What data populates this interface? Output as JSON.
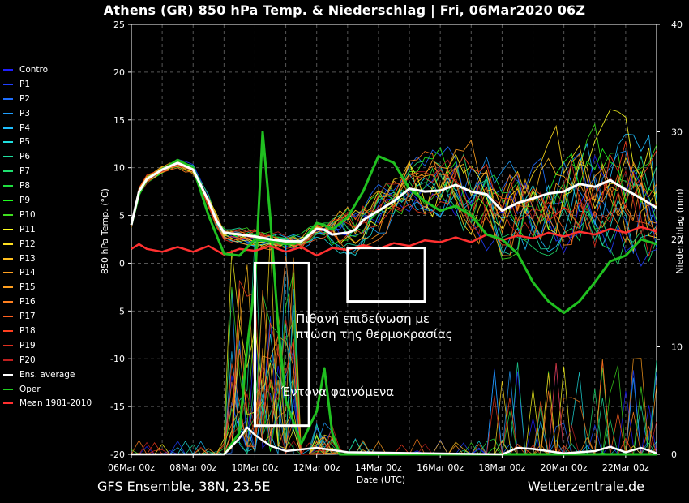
{
  "title": "Athens  (GR)  850 hPa Temp. & Niederschlag | Fri, 06Mar2020 06Z",
  "footer_left": "GFS Ensemble, 38N, 23.5E",
  "footer_right": "Wetterzentrale.de",
  "annotations": {
    "cooling_text_line1": "Πιθανή επιδείνωση με",
    "cooling_text_line2": "πτώση της θερμοκρασίας",
    "intense_text": "Έντονα φαινόμενα"
  },
  "legend": [
    {
      "label": "Control",
      "color": "#2020ff"
    },
    {
      "label": "P1",
      "color": "#1f3fff"
    },
    {
      "label": "P2",
      "color": "#1f6fff"
    },
    {
      "label": "P3",
      "color": "#1f9fff"
    },
    {
      "label": "P4",
      "color": "#1fbfff"
    },
    {
      "label": "P5",
      "color": "#1fdfdf"
    },
    {
      "label": "P6",
      "color": "#1fdf9f"
    },
    {
      "label": "P7",
      "color": "#1fdf6f"
    },
    {
      "label": "P8",
      "color": "#1fdf3f"
    },
    {
      "label": "P9",
      "color": "#20ff20"
    },
    {
      "label": "P10",
      "color": "#3fdf1f"
    },
    {
      "label": "P11",
      "color": "#ffff20"
    },
    {
      "label": "P12",
      "color": "#ffdf20"
    },
    {
      "label": "P13",
      "color": "#ffbf20"
    },
    {
      "label": "P14",
      "color": "#ffa020"
    },
    {
      "label": "P15",
      "color": "#ff9f1f"
    },
    {
      "label": "P16",
      "color": "#ff801f"
    },
    {
      "label": "P17",
      "color": "#ff601f"
    },
    {
      "label": "P18",
      "color": "#ff401f"
    },
    {
      "label": "P19",
      "color": "#df301f"
    },
    {
      "label": "P20",
      "color": "#bf201f"
    },
    {
      "label": "Ens. average",
      "color": "#ffffff"
    },
    {
      "label": "Oper",
      "color": "#20d020"
    },
    {
      "label": "Mean 1981-2010",
      "color": "#ff3030"
    }
  ],
  "chart_data": {
    "type": "line",
    "xlabel": "Date (UTC)",
    "ylabel": "850 hPa Temp. (°C)",
    "y2label": "Niederschlag (mm)",
    "ylim": [
      -20,
      25
    ],
    "y2lim": [
      0,
      40
    ],
    "yticks": [
      "25",
      "20",
      "15",
      "10",
      "5",
      "0",
      "-5",
      "-10",
      "-15",
      "-20"
    ],
    "y2ticks": [
      "40",
      "30",
      "20",
      "10",
      "0"
    ],
    "xticks": [
      "06Mar 00z",
      "08Mar 00z",
      "10Mar 00z",
      "12Mar 00z",
      "14Mar 00z",
      "16Mar 00z",
      "18Mar 00z",
      "20Mar 00z",
      "22Mar 00z"
    ],
    "x_start_day": 6,
    "x_end_day": 22,
    "series": [
      {
        "name": "Ens. average",
        "color": "#ffffff",
        "width": 3,
        "points": [
          [
            6.0,
            4
          ],
          [
            6.25,
            7.5
          ],
          [
            6.5,
            8.8
          ],
          [
            7.0,
            9.8
          ],
          [
            7.5,
            10.5
          ],
          [
            8.0,
            9.8
          ],
          [
            8.5,
            6.5
          ],
          [
            8.75,
            4.5
          ],
          [
            9.0,
            3.2
          ],
          [
            9.5,
            3.0
          ],
          [
            10.0,
            2.8
          ],
          [
            10.5,
            2.5
          ],
          [
            11.0,
            2.3
          ],
          [
            11.5,
            2.3
          ],
          [
            12.0,
            3.6
          ],
          [
            12.25,
            3.5
          ],
          [
            12.5,
            3.0
          ],
          [
            13.0,
            3.2
          ],
          [
            13.25,
            3.5
          ],
          [
            13.5,
            4.5
          ],
          [
            14.0,
            5.5
          ],
          [
            14.5,
            6.5
          ],
          [
            15.0,
            7.8
          ],
          [
            15.5,
            7.5
          ],
          [
            16.0,
            7.6
          ],
          [
            16.5,
            8.2
          ],
          [
            17.0,
            7.5
          ],
          [
            17.5,
            7.2
          ],
          [
            18.0,
            5.5
          ],
          [
            18.5,
            6.3
          ],
          [
            19.0,
            6.8
          ],
          [
            19.5,
            7.3
          ],
          [
            20.0,
            7.5
          ],
          [
            20.5,
            8.3
          ],
          [
            21.0,
            8.0
          ],
          [
            21.5,
            8.7
          ],
          [
            22.0,
            7.7
          ],
          [
            22.5,
            6.8
          ],
          [
            23.0,
            5.8
          ]
        ]
      },
      {
        "name": "Oper",
        "color": "#20c020",
        "width": 3,
        "points": [
          [
            6.0,
            4
          ],
          [
            6.25,
            7.2
          ],
          [
            6.5,
            8.8
          ],
          [
            7.0,
            9.8
          ],
          [
            7.5,
            10.8
          ],
          [
            8.0,
            10.0
          ],
          [
            8.5,
            5.0
          ],
          [
            8.75,
            3.0
          ],
          [
            9.0,
            1.0
          ],
          [
            9.5,
            0.8
          ],
          [
            10.0,
            2.5
          ],
          [
            10.5,
            2.3
          ],
          [
            11.0,
            2.0
          ],
          [
            11.5,
            2.2
          ],
          [
            12.0,
            4.2
          ],
          [
            12.25,
            4.0
          ],
          [
            12.5,
            3.5
          ],
          [
            13.0,
            4.8
          ],
          [
            13.5,
            7.5
          ],
          [
            14.0,
            11.2
          ],
          [
            14.5,
            10.5
          ],
          [
            15.0,
            7.8
          ],
          [
            15.5,
            6.5
          ],
          [
            16.0,
            5.5
          ],
          [
            16.5,
            6.0
          ],
          [
            17.0,
            5.0
          ],
          [
            17.5,
            3.0
          ],
          [
            18.0,
            2.5
          ],
          [
            18.5,
            1.0
          ],
          [
            19.0,
            -2.0
          ],
          [
            19.5,
            -4.0
          ],
          [
            20.0,
            -5.2
          ],
          [
            20.5,
            -4.0
          ],
          [
            21.0,
            -2.0
          ],
          [
            21.5,
            0.2
          ],
          [
            22.0,
            0.8
          ],
          [
            22.5,
            2.5
          ],
          [
            23.0,
            2.0
          ]
        ]
      },
      {
        "name": "Mean 1981-2010",
        "color": "#ff3030",
        "width": 2.5,
        "points": [
          [
            6.0,
            1.5
          ],
          [
            6.25,
            2.0
          ],
          [
            6.5,
            1.5
          ],
          [
            7.0,
            1.2
          ],
          [
            7.5,
            1.7
          ],
          [
            8.0,
            1.2
          ],
          [
            8.5,
            1.8
          ],
          [
            9.0,
            0.9
          ],
          [
            9.5,
            1.5
          ],
          [
            10.0,
            1.3
          ],
          [
            10.5,
            1.8
          ],
          [
            11.0,
            1.2
          ],
          [
            11.5,
            1.7
          ],
          [
            12.0,
            0.8
          ],
          [
            12.5,
            1.6
          ],
          [
            13.0,
            1.4
          ],
          [
            13.5,
            1.9
          ],
          [
            14.0,
            1.5
          ],
          [
            14.5,
            2.1
          ],
          [
            15.0,
            1.8
          ],
          [
            15.5,
            2.4
          ],
          [
            16.0,
            2.2
          ],
          [
            16.5,
            2.7
          ],
          [
            17.0,
            2.2
          ],
          [
            17.5,
            3.0
          ],
          [
            18.0,
            2.4
          ],
          [
            18.5,
            2.9
          ],
          [
            19.0,
            2.6
          ],
          [
            19.5,
            3.2
          ],
          [
            20.0,
            2.8
          ],
          [
            20.5,
            3.3
          ],
          [
            21.0,
            3.0
          ],
          [
            21.5,
            3.6
          ],
          [
            22.0,
            3.2
          ],
          [
            22.5,
            3.8
          ],
          [
            23.0,
            3.3
          ]
        ]
      }
    ],
    "precip_series": [
      {
        "name": "Oper precipitation",
        "color": "#20c020",
        "width": 3,
        "points": [
          [
            9.0,
            0
          ],
          [
            9.5,
            2
          ],
          [
            9.75,
            10
          ],
          [
            10.0,
            16
          ],
          [
            10.25,
            30
          ],
          [
            10.5,
            22
          ],
          [
            10.75,
            12
          ],
          [
            11.0,
            5
          ],
          [
            11.5,
            1
          ],
          [
            12.0,
            4
          ],
          [
            12.25,
            8
          ],
          [
            12.5,
            2
          ],
          [
            12.75,
            0
          ],
          [
            13.0,
            0
          ],
          [
            23.0,
            0
          ]
        ]
      },
      {
        "name": "Ens. average precipitation",
        "color": "#ffffff",
        "width": 2.5,
        "points": [
          [
            6.0,
            0
          ],
          [
            9.0,
            0
          ],
          [
            9.5,
            1.5
          ],
          [
            9.75,
            2.5
          ],
          [
            10.0,
            1.8
          ],
          [
            10.5,
            0.8
          ],
          [
            11.0,
            0.3
          ],
          [
            12.0,
            0.6
          ],
          [
            13.0,
            0.2
          ],
          [
            18.0,
            0
          ],
          [
            18.5,
            0.6
          ],
          [
            19.0,
            0.5
          ],
          [
            20.0,
            0.1
          ],
          [
            20.5,
            0.2
          ],
          [
            21.0,
            0.3
          ],
          [
            21.5,
            0.7
          ],
          [
            22.0,
            0.2
          ],
          [
            22.5,
            0.6
          ],
          [
            23.0,
            0.1
          ]
        ]
      }
    ],
    "annotation_boxes": [
      {
        "x0": 10.0,
        "x1": 11.75,
        "y0": -17,
        "y1": 0
      },
      {
        "x0": 13.0,
        "x1": 15.5,
        "y0": -4,
        "y1": 1.6
      }
    ]
  }
}
